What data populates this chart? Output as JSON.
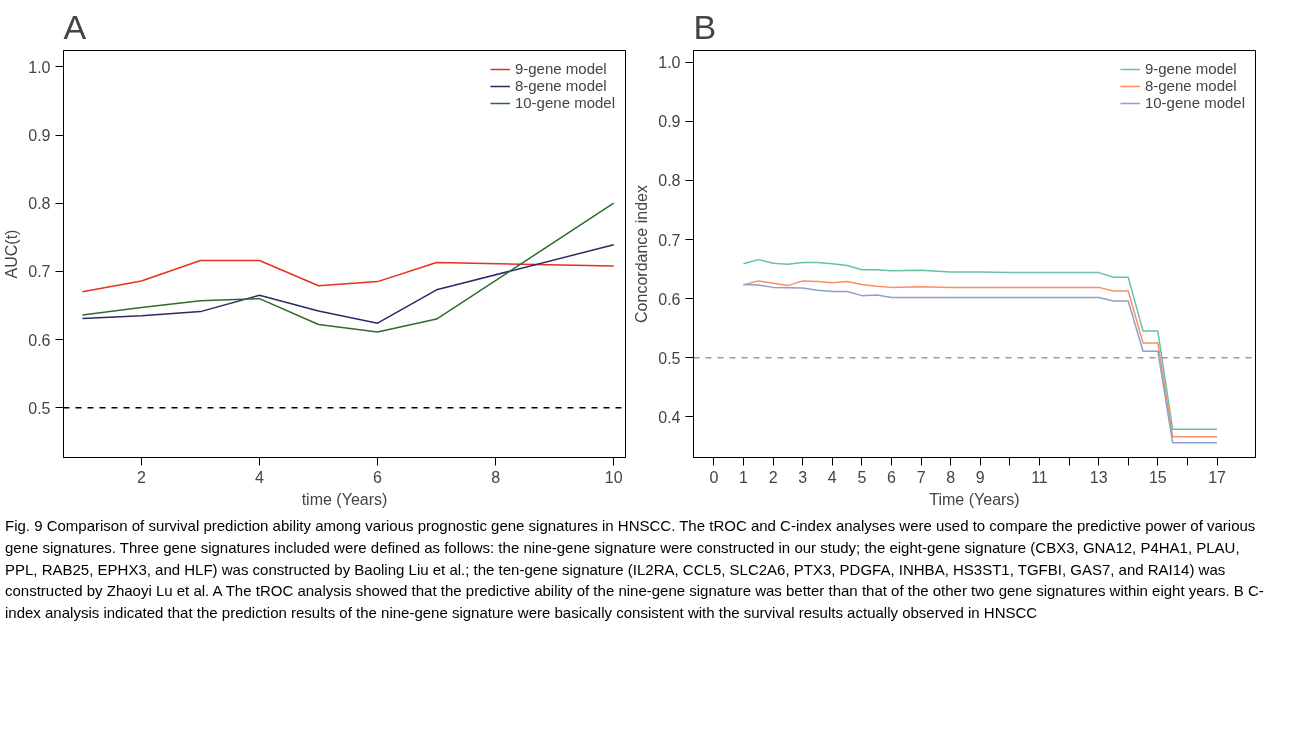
{
  "chart_data": [
    {
      "type": "line",
      "title": "A",
      "xlabel": "time (Years)",
      "ylabel": "AUC(t)",
      "x": [
        1,
        2,
        3,
        4,
        5,
        6,
        7,
        10
      ],
      "xlim": [
        0.68,
        10.2
      ],
      "ylim": [
        0.427,
        1.024
      ],
      "xticks": [
        2,
        4,
        6,
        8,
        10
      ],
      "yticks": [
        0.5,
        0.6,
        0.7,
        0.8,
        0.9,
        {
          "value": 1.0,
          "label": "1.0"
        }
      ],
      "grid": false,
      "legend": "top right",
      "line_style": "solid",
      "series": [
        {
          "name": "9-gene model",
          "color": "#e8301e",
          "values": [
            0.67,
            0.686,
            0.716,
            0.716,
            0.679,
            0.685,
            0.713,
            0.708
          ]
        },
        {
          "name": "8-gene model",
          "color": "#2b2a6b",
          "values": [
            0.631,
            0.635,
            0.641,
            0.665,
            0.642,
            0.624,
            0.673,
            0.739
          ]
        },
        {
          "name": "10-gene model",
          "color": "#2e6b2e",
          "values": [
            0.636,
            0.647,
            0.657,
            0.66,
            0.622,
            0.611,
            0.63,
            0.8
          ]
        }
      ],
      "ref_lines": [
        {
          "axis": "y",
          "value": 0.5,
          "color": "#000000",
          "line_style": "dashed"
        }
      ],
      "annotations": [
        "Fig. 9 Comparison of survival prediction ability among various prognostic gene signatures in HNSCC. The tROC and C-index analyses were used to compare the predictive power of various gene signatures. Three gene signatures included were defined as follows: the nine-gene signature were constructed in our study; the eight-gene signature (CBX3, GNA12, P4HA1, PLAU, PPL, RAB25, EPHX3, and HLF) was constructed by Baoling Liu et al.; the ten-gene signature (IL2RA, CCL5, SLC2A6, PTX3, PDGFA, INHBA, HS3ST1, TGFBI, GAS7, and RAI14) was constructed by Zhaoyi Lu et al. A The tROC analysis showed that the predictive ability of the nine-gene signature was better than that of the other two gene signatures within eight years. B C-index analysis indicated that the prediction results of the nine-gene signature were basically consistent with the survival results actually observed in HNSCC"
      ]
    },
    {
      "type": "line",
      "title": "B",
      "xlabel": "Time (Years)",
      "ylabel": "Concordance index",
      "xlim": [
        -0.69,
        18.3
      ],
      "ylim": [
        0.331,
        1.02
      ],
      "xticks": [
        0,
        1,
        2,
        3,
        4,
        5,
        6,
        7,
        8,
        9,
        {
          "value": 10,
          "label": null
        },
        11,
        {
          "value": 12,
          "label": null
        },
        13,
        {
          "value": 14,
          "label": null
        },
        15,
        {
          "value": 16,
          "label": null
        },
        17
      ],
      "yticks": [
        0.4,
        0.5,
        0.6,
        0.7,
        0.8,
        0.9,
        {
          "value": 1.0,
          "label": "1.0"
        }
      ],
      "grid": false,
      "legend": "top right",
      "line_style": "solid",
      "series": [
        {
          "name": "9-gene model",
          "color": "#66c2a5",
          "x": [
            1,
            1.5,
            2,
            2.5,
            3,
            3.5,
            4,
            4.5,
            5,
            5.5,
            6,
            7,
            8,
            9,
            10,
            13,
            13.5,
            14,
            14.5,
            15,
            15.5,
            17
          ],
          "values": [
            0.659,
            0.666,
            0.66,
            0.658,
            0.661,
            0.661,
            0.659,
            0.656,
            0.649,
            0.649,
            0.647,
            0.648,
            0.645,
            0.645,
            0.644,
            0.644,
            0.636,
            0.636,
            0.545,
            0.545,
            0.379,
            0.379
          ]
        },
        {
          "name": "8-gene model",
          "color": "#fc8d62",
          "x": [
            1,
            1.5,
            2,
            2.5,
            3,
            3.5,
            4,
            4.5,
            5,
            5.5,
            6,
            7,
            8,
            9,
            13,
            13.5,
            14,
            14.5,
            15,
            15.5,
            17
          ],
          "values": [
            0.623,
            0.63,
            0.626,
            0.622,
            0.63,
            0.629,
            0.627,
            0.629,
            0.624,
            0.621,
            0.619,
            0.62,
            0.619,
            0.619,
            0.619,
            0.613,
            0.613,
            0.525,
            0.525,
            0.366,
            0.366
          ]
        },
        {
          "name": "10-gene model",
          "color": "#8da0cb",
          "x": [
            1,
            1.5,
            2,
            3,
            3.5,
            4,
            4.5,
            5,
            5.5,
            6,
            8,
            9,
            13,
            13.5,
            14,
            14.5,
            15,
            15.5,
            17
          ],
          "values": [
            0.624,
            0.623,
            0.619,
            0.618,
            0.614,
            0.612,
            0.612,
            0.605,
            0.606,
            0.602,
            0.602,
            0.602,
            0.602,
            0.596,
            0.596,
            0.511,
            0.511,
            0.356,
            0.356
          ]
        }
      ],
      "ref_lines": [
        {
          "axis": "y",
          "value": 0.5,
          "color": "#999999",
          "line_style": "dashed"
        }
      ]
    }
  ]
}
